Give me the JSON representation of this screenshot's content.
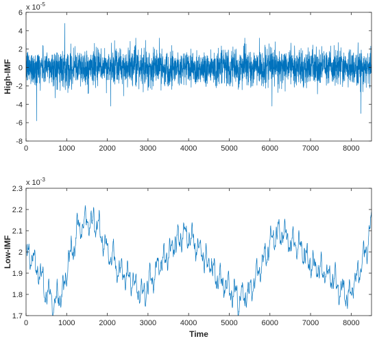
{
  "chart_data": [
    {
      "type": "line",
      "ylabel": "High-IMF",
      "xlabel": "",
      "y_exponent_label": "x 10",
      "y_exponent": "-5",
      "xlim": [
        0,
        8500
      ],
      "ylim": [
        -8,
        6
      ],
      "x_ticks": [
        0,
        1000,
        2000,
        3000,
        4000,
        5000,
        6000,
        7000,
        8000
      ],
      "y_ticks": [
        -8,
        -6,
        -4,
        -2,
        0,
        2,
        4,
        6
      ],
      "line_color": "#0072BD",
      "n_points": 8500,
      "notable_points": [
        {
          "x": 950,
          "y": 4.8
        },
        {
          "x": 260,
          "y": -5.8
        },
        {
          "x": 3000,
          "y": -2.5
        },
        {
          "x": 8240,
          "y": -5.0
        },
        {
          "x": 8170,
          "y": 2.7
        }
      ],
      "typical_amplitude": 1.3
    },
    {
      "type": "line",
      "ylabel": "Low-IMF",
      "xlabel": "Time",
      "y_exponent_label": "x 10",
      "y_exponent": "-3",
      "xlim": [
        0,
        8500
      ],
      "ylim": [
        1.7,
        2.3
      ],
      "x_ticks": [
        0,
        1000,
        2000,
        3000,
        4000,
        5000,
        6000,
        7000,
        8000
      ],
      "y_ticks": [
        1.7,
        1.8,
        1.9,
        2.0,
        2.1,
        2.2,
        2.3
      ],
      "y_tick_labels": [
        "1.7",
        "1.8",
        "1.9",
        "2",
        "2.1",
        "2.2",
        "2.3"
      ],
      "line_color": "#0072BD",
      "trend": {
        "x": [
          0,
          150,
          300,
          500,
          700,
          900,
          1100,
          1300,
          1500,
          1700,
          1900,
          2100,
          2300,
          2500,
          2700,
          2900,
          3100,
          3300,
          3500,
          3700,
          3900,
          4100,
          4300,
          4500,
          4700,
          4900,
          5100,
          5300,
          5500,
          5700,
          5900,
          6100,
          6300,
          6500,
          6700,
          6900,
          7100,
          7300,
          7500,
          7700,
          7900,
          8100,
          8300,
          8500
        ],
        "y": [
          2.0,
          1.97,
          1.9,
          1.81,
          1.76,
          1.82,
          2.0,
          2.12,
          2.16,
          2.13,
          2.05,
          1.98,
          1.92,
          1.88,
          1.84,
          1.81,
          1.87,
          1.95,
          2.0,
          2.04,
          2.08,
          2.05,
          2.0,
          1.95,
          1.88,
          1.83,
          1.8,
          1.78,
          1.82,
          1.9,
          1.98,
          2.08,
          2.1,
          2.06,
          2.02,
          1.97,
          1.92,
          1.9,
          1.88,
          1.83,
          1.8,
          1.86,
          1.98,
          2.15
        ]
      }
    }
  ]
}
